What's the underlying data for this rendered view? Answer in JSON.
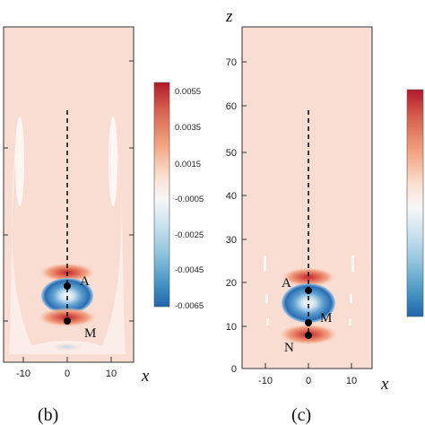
{
  "chart_data": [
    {
      "type": "heatmap",
      "panel_label": "(b)",
      "xlabel": "x",
      "ylabel": "",
      "xticks": [
        "-10",
        "0",
        "10"
      ],
      "xlim": [
        -15,
        15
      ],
      "ylim": [
        0,
        80
      ],
      "colorbar_ticks": [
        "0.0055",
        "0.0035",
        "0.0015",
        "-0.0005",
        "-0.0025",
        "-0.0045",
        "-0.0065"
      ],
      "colorbar_range": [
        -0.0075,
        0.0065
      ],
      "points": [
        {
          "name": "A",
          "x": 0,
          "z": 17.5
        },
        {
          "name": "M",
          "x": 0,
          "z": 10.5
        }
      ],
      "centerline": {
        "x": 0,
        "z_start": 8,
        "z_end": 60
      },
      "features": [
        {
          "kind": "positive-lobe",
          "x": 0,
          "z": 20.5,
          "level": 0.0045
        },
        {
          "kind": "negative-core",
          "x": 0,
          "z": 14,
          "level": -0.0065
        },
        {
          "kind": "positive-lobe",
          "x": 0,
          "z": 8.5,
          "level": 0.0045
        },
        {
          "kind": "weak-negative",
          "x": 0,
          "z": 4,
          "level": -0.0015
        }
      ]
    },
    {
      "type": "heatmap",
      "panel_label": "(c)",
      "xlabel": "x",
      "ylabel": "z",
      "xticks": [
        "-10",
        "0",
        "10"
      ],
      "yticks": [
        "0",
        "10",
        "20",
        "30",
        "40",
        "50",
        "60",
        "70"
      ],
      "xlim": [
        -15,
        15
      ],
      "ylim": [
        0,
        80
      ],
      "points": [
        {
          "name": "A",
          "x": 0,
          "z": 17.5
        },
        {
          "name": "M",
          "x": 0,
          "z": 10.5
        },
        {
          "name": "N",
          "x": 0,
          "z": 7.5
        }
      ],
      "centerline": {
        "x": 0,
        "z_start": 7.5,
        "z_end": 60
      },
      "features": [
        {
          "kind": "positive-lobe",
          "x": 0,
          "z": 20.5,
          "level": 0.0045
        },
        {
          "kind": "negative-core",
          "x": 0,
          "z": 14,
          "level": -0.0065
        },
        {
          "kind": "positive-lobe",
          "x": 0,
          "z": 7.5,
          "level": 0.0045
        }
      ]
    }
  ],
  "colors": {
    "background_field": "#f9ddd2",
    "field_white": "#ffffff",
    "positive_strong": "#b5172b",
    "negative_strong": "#1f5ea8"
  }
}
